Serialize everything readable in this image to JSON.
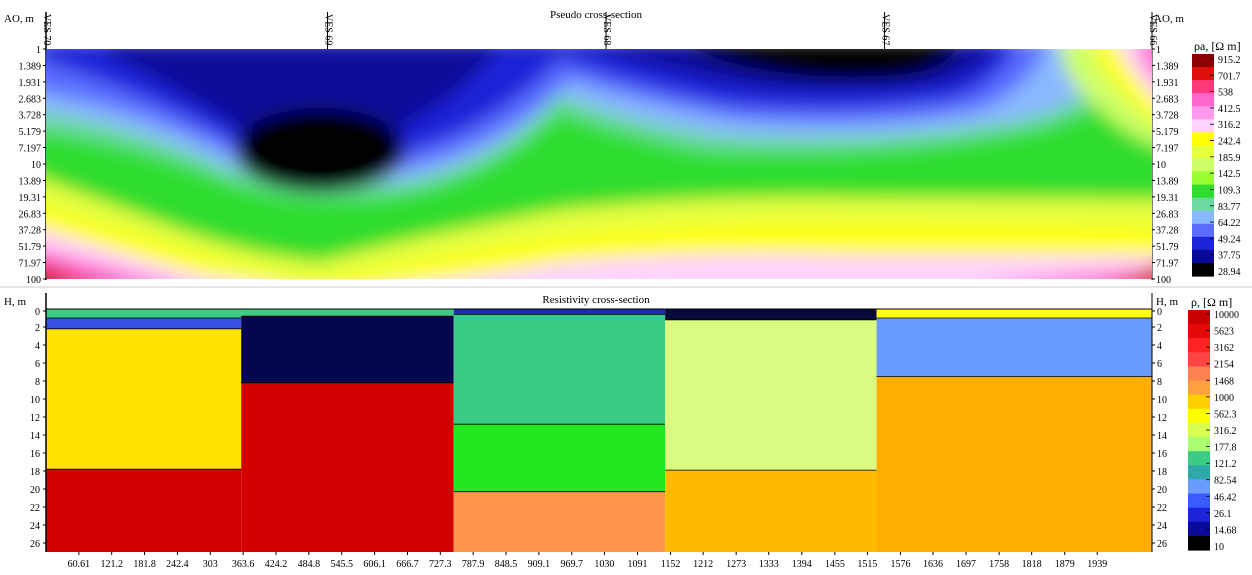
{
  "chart_data": [
    {
      "type": "heatmap",
      "title": "Pseudo cross-section",
      "ylabel": "AO, m",
      "ylabel_right": "AO, m",
      "y_ticks": [
        "1",
        "1.389",
        "1.931",
        "2.683",
        "3.728",
        "5.179",
        "7.197",
        "10",
        "13.89",
        "19.31",
        "26.83",
        "37.28",
        "51.79",
        "71.97",
        "100"
      ],
      "stations": [
        {
          "label": "VES 70",
          "x": 0
        },
        {
          "label": "VES 69",
          "x": 280
        },
        {
          "label": "VES 68",
          "x": 557
        },
        {
          "label": "VES 67",
          "x": 834
        },
        {
          "label": "VES 66",
          "x": 1100
        }
      ],
      "colorbar_title": "ρa, [Ω m]",
      "colorbar_ticks": [
        "915.2",
        "701.7",
        "538",
        "412.5",
        "316.2",
        "242.4",
        "185.9",
        "142.5",
        "109.3",
        "83.77",
        "64.22",
        "49.24",
        "37.75",
        "28.94"
      ],
      "palette": [
        "#8b0000",
        "#e01010",
        "#ff3a7a",
        "#ff66cc",
        "#ff99ee",
        "#ffd2ff",
        "#ffff00",
        "#e8ff40",
        "#ccff66",
        "#99ff33",
        "#2edd2e",
        "#6cd9a0",
        "#8ab8ff",
        "#5a6dff",
        "#1c24d8",
        "#0a0a9a",
        "#000000"
      ],
      "bounds": [
        28.94,
        915.2
      ]
    },
    {
      "type": "bar",
      "title": "Resistivity cross-section",
      "ylabel": "H, m",
      "ylabel_right": "H, m",
      "y_ticks": [
        "0",
        "2",
        "4",
        "6",
        "8",
        "10",
        "12",
        "14",
        "16",
        "18",
        "20",
        "22",
        "24",
        "26"
      ],
      "ylim": [
        0,
        27
      ],
      "x_ticks": [
        "60.61",
        "121.2",
        "181.8",
        "242.4",
        "303",
        "363.6",
        "424.2",
        "484.8",
        "545.5",
        "606.1",
        "666.7",
        "727.3",
        "787.9",
        "848.5",
        "909.1",
        "969.7",
        "1030",
        "1091",
        "1152",
        "1212",
        "1273",
        "1333",
        "1394",
        "1455",
        "1515",
        "1576",
        "1636",
        "1697",
        "1758",
        "1818",
        "1879",
        "1939"
      ],
      "xlim": [
        0,
        2040
      ],
      "colorbar_title": "ρ, [Ω m]",
      "colorbar_ticks": [
        "10000",
        "5623",
        "3162",
        "2154",
        "1468",
        "1000",
        "562.3",
        "316.2",
        "177.8",
        "121.2",
        "82.54",
        "46.42",
        "26.1",
        "14.68",
        "10"
      ],
      "columns": [
        {
          "x0": 0,
          "x1": 360,
          "layers": [
            {
              "top": 0,
              "bottom": 1,
              "color": "#3acb84"
            },
            {
              "top": 1,
              "bottom": 2.2,
              "color": "#3650e6"
            },
            {
              "top": 2.2,
              "bottom": 17.8,
              "color": "#ffe200"
            },
            {
              "top": 17.8,
              "bottom": 27,
              "color": "#d20000"
            }
          ]
        },
        {
          "x0": 360,
          "x1": 752,
          "layers": [
            {
              "top": 0,
              "bottom": 0.8,
              "color": "#3acb84"
            },
            {
              "top": 0.8,
              "bottom": 8.2,
              "color": "#06064e"
            },
            {
              "top": 8.2,
              "bottom": 27,
              "color": "#d20000"
            }
          ]
        },
        {
          "x0": 752,
          "x1": 1142,
          "layers": [
            {
              "top": 0,
              "bottom": 0.6,
              "color": "#1e2ab8"
            },
            {
              "top": 0.6,
              "bottom": 12.8,
              "color": "#3acb84"
            },
            {
              "top": 12.8,
              "bottom": 20.3,
              "color": "#22e81e"
            },
            {
              "top": 20.3,
              "bottom": 27,
              "color": "#ff944b"
            }
          ]
        },
        {
          "x0": 1142,
          "x1": 1532,
          "layers": [
            {
              "top": 0,
              "bottom": 1.2,
              "color": "#050a3a"
            },
            {
              "top": 1.2,
              "bottom": 17.9,
              "color": "#dafb82"
            },
            {
              "top": 17.9,
              "bottom": 27,
              "color": "#ffbb00"
            }
          ]
        },
        {
          "x0": 1532,
          "x1": 2040,
          "layers": [
            {
              "top": 0,
              "bottom": 1.0,
              "color": "#ffff14"
            },
            {
              "top": 1.0,
              "bottom": 7.5,
              "color": "#6a9cff"
            },
            {
              "top": 7.5,
              "bottom": 27,
              "color": "#ffae00"
            }
          ]
        }
      ]
    }
  ]
}
